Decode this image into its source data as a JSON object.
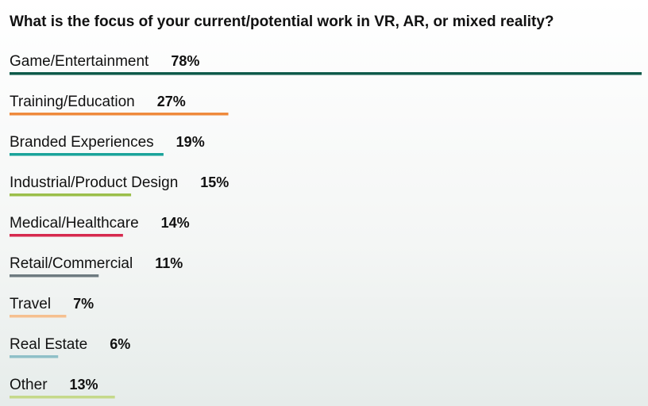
{
  "chart_data": {
    "type": "bar",
    "orientation": "horizontal",
    "title": "What is the focus of your current/potential work in VR, AR, or mixed reality?",
    "categories": [
      "Game/Entertainment",
      "Training/Education",
      "Branded Experiences",
      "Industrial/Product Design",
      "Medical/Healthcare",
      "Retail/Commercial",
      "Travel",
      "Real Estate",
      "Other"
    ],
    "values": [
      78,
      27,
      19,
      15,
      14,
      11,
      7,
      6,
      13
    ],
    "value_labels": [
      "78%",
      "27%",
      "19%",
      "15%",
      "14%",
      "11%",
      "7%",
      "6%",
      "13%"
    ],
    "colors": [
      "#0e5a4a",
      "#ef8a3c",
      "#1aa39a",
      "#9bbf4a",
      "#d6294e",
      "#6e7b80",
      "#f6c08f",
      "#8fc0c8",
      "#c5d98a"
    ]
  }
}
